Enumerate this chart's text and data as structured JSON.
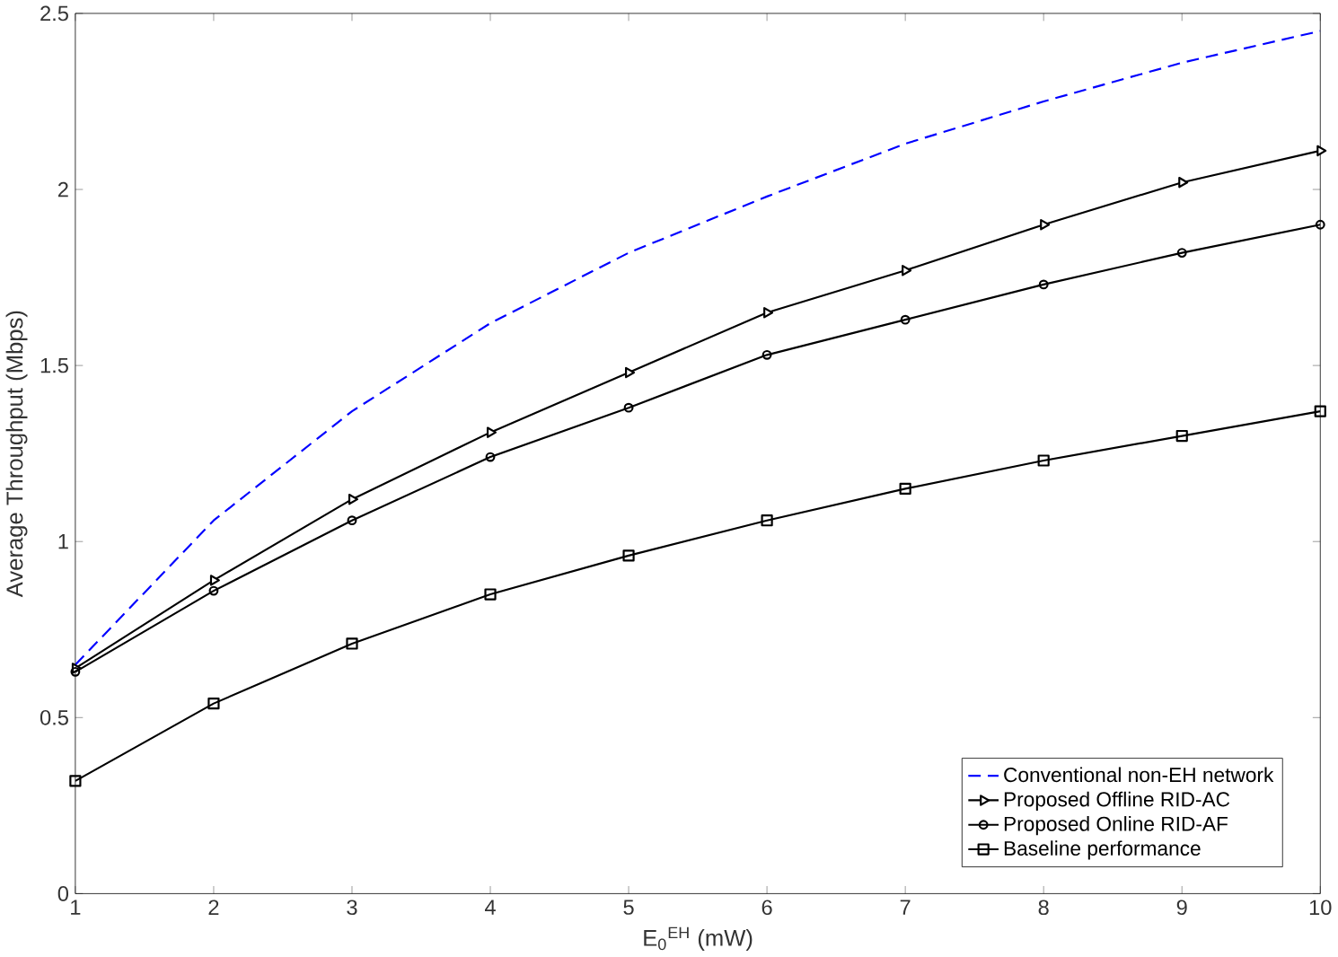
{
  "chart_data": {
    "type": "line",
    "xlabel": "E$_{0}$$^{EH}$ (mW)",
    "ylabel": "Average Throughput (Mbps)",
    "x": [
      1,
      2,
      3,
      4,
      5,
      6,
      7,
      8,
      9,
      10
    ],
    "series": [
      {
        "name": "Conventional non-EH network",
        "color": "#0000ff",
        "line_style": "dashed",
        "marker": "none",
        "values": [
          0.65,
          1.06,
          1.37,
          1.62,
          1.82,
          1.98,
          2.13,
          2.25,
          2.36,
          2.45
        ]
      },
      {
        "name": "Proposed Offline RID-AC",
        "color": "#000000",
        "line_style": "solid",
        "marker": "triangle",
        "values": [
          0.64,
          0.89,
          1.12,
          1.31,
          1.48,
          1.65,
          1.77,
          1.9,
          2.02,
          2.11
        ]
      },
      {
        "name": "Proposed Online RID-AF",
        "color": "#000000",
        "line_style": "solid",
        "marker": "circle",
        "values": [
          0.63,
          0.86,
          1.06,
          1.24,
          1.38,
          1.53,
          1.63,
          1.73,
          1.82,
          1.9
        ]
      },
      {
        "name": "Baseline performance",
        "color": "#000000",
        "line_style": "solid",
        "marker": "square",
        "values": [
          0.32,
          0.54,
          0.71,
          0.85,
          0.96,
          1.06,
          1.15,
          1.23,
          1.3,
          1.37
        ]
      }
    ],
    "xlim": [
      1,
      10
    ],
    "ylim": [
      0,
      2.5
    ],
    "xticks": [
      1,
      2,
      3,
      4,
      5,
      6,
      7,
      8,
      9,
      10
    ],
    "yticks": [
      0,
      0.5,
      1,
      1.5,
      2,
      2.5
    ],
    "grid": false,
    "legend": "bottom right"
  }
}
